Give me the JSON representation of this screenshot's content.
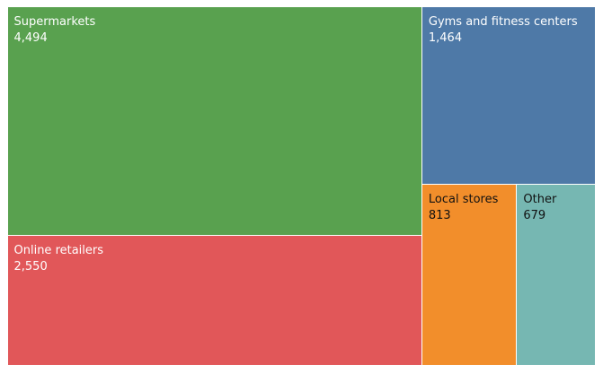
{
  "chart_data": {
    "type": "treemap",
    "items": [
      {
        "label": "Supermarkets",
        "value": 4494,
        "display_value": "4,494",
        "color": "#59a14f",
        "text_color": "#ffffff"
      },
      {
        "label": "Online retailers",
        "value": 2550,
        "display_value": "2,550",
        "color": "#e15759",
        "text_color": "#ffffff"
      },
      {
        "label": "Gyms and fitness centers",
        "value": 1464,
        "display_value": "1,464",
        "color": "#4e79a7",
        "text_color": "#ffffff"
      },
      {
        "label": "Local stores",
        "value": 813,
        "display_value": "813",
        "color": "#f28e2b",
        "text_color": "#111111"
      },
      {
        "label": "Other",
        "value": 679,
        "display_value": "679",
        "color": "#76b7b2",
        "text_color": "#111111"
      }
    ]
  }
}
